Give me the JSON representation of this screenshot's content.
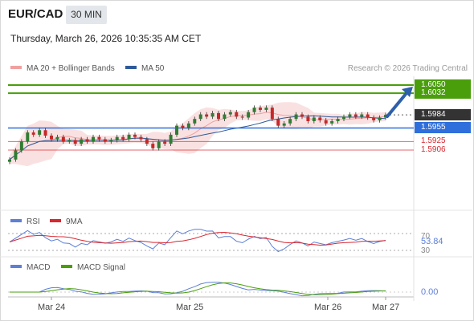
{
  "header": {
    "pair": "EUR/CAD",
    "timeframe": "30 MIN",
    "datetime": "Thursday, March 26, 2026 10:35:35 AM CET"
  },
  "legend": {
    "bb_label": "MA 20 + Bollinger Bands",
    "ma50_label": "MA 50",
    "rsi_label": "RSI",
    "rsi_ma_label": "9MA",
    "macd_label": "MACD",
    "macd_signal_label": "MACD Signal"
  },
  "credit": "Research © 2026 Trading Central",
  "colors": {
    "green": "#4a9e0c",
    "blue": "#2f6fdb",
    "red": "#d9262f",
    "dark": "#333333",
    "bb": "#f6c9c9",
    "ma": "#f0a0a0",
    "ma50": "#2e5a9a",
    "arrow": "#2d5faa"
  },
  "chart_data": {
    "type": "line",
    "x_labels": [
      "Mar 24",
      "Mar 25",
      "Mar 26",
      "Mar 27"
    ],
    "price": {
      "last": 1.5984,
      "levels": [
        {
          "label": "1.6050",
          "value": 1.605,
          "kind": "target"
        },
        {
          "label": "1.6032",
          "value": 1.6032,
          "kind": "target"
        },
        {
          "label": "1.5984",
          "value": 1.5984,
          "kind": "last"
        },
        {
          "label": "1.5955",
          "value": 1.5955,
          "kind": "pivot"
        },
        {
          "label": "1.5925",
          "value": 1.5925,
          "kind": "support"
        },
        {
          "label": "1.5906",
          "value": 1.5906,
          "kind": "support"
        }
      ],
      "close": [
        1.5885,
        1.5905,
        1.5925,
        1.5945,
        1.594,
        1.595,
        1.5938,
        1.593,
        1.5935,
        1.5925,
        1.5928,
        1.592,
        1.593,
        1.5925,
        1.5935,
        1.593,
        1.5925,
        1.5928,
        1.5935,
        1.593,
        1.594,
        1.5935,
        1.593,
        1.592,
        1.591,
        1.5925,
        1.592,
        1.594,
        1.596,
        1.5955,
        1.5965,
        1.5975,
        1.5985,
        1.598,
        1.5988,
        1.5975,
        1.5985,
        1.599,
        1.598,
        1.5978,
        1.599,
        1.6,
        1.5995,
        1.6,
        1.5975,
        1.596,
        1.5965,
        1.5975,
        1.5985,
        1.598,
        1.597,
        1.5978,
        1.5972,
        1.5965,
        1.597,
        1.5975,
        1.598,
        1.5985,
        1.598,
        1.5985,
        1.5978,
        1.5972,
        1.5978,
        1.5984
      ]
    },
    "rsi": {
      "value_label": "53.84",
      "ticks": [
        "70",
        "30"
      ]
    },
    "macd": {
      "value_label": "0.00"
    }
  }
}
